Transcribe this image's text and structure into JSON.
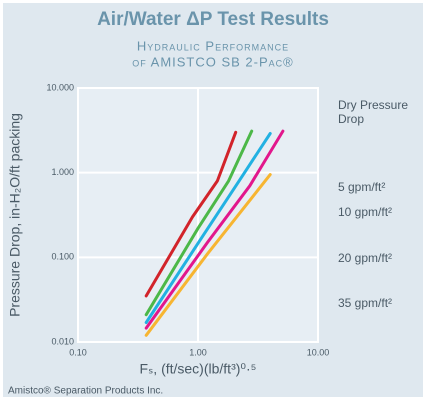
{
  "chart_data": {
    "type": "line",
    "title": "Air/Water ΔP Test Results",
    "subtitle": [
      "Hydraulic Performance",
      "of AMISTCO SB 2-Pac®"
    ],
    "x_label": "Fₛ, (ft/sec)(lb/ft³)⁰·⁵",
    "y_label": "Pressure Drop, in-H₂O/ft packing",
    "footer": "Amistco® Separation Products Inc.",
    "xlog": true,
    "ylog": true,
    "grid": true,
    "legend": "right",
    "xlim": [
      0.1,
      10
    ],
    "ylim": [
      0.01,
      10
    ],
    "xticks": [
      {
        "value": 0.1,
        "label": "0.10"
      },
      {
        "value": 1,
        "label": "1.00"
      },
      {
        "value": 10,
        "label": "10.00"
      }
    ],
    "yticks": [
      {
        "value": 0.01,
        "label": "0.010"
      },
      {
        "value": 0.1,
        "label": "0.100"
      },
      {
        "value": 1,
        "label": "1.000"
      },
      {
        "value": 10,
        "label": "10.000"
      }
    ],
    "series": [
      {
        "name": "Dry Pressure Drop",
        "color": "#f7b531",
        "x": [
          0.37,
          1.2,
          4.0
        ],
        "values": [
          0.012,
          0.11,
          0.95
        ]
      },
      {
        "name": "5 gpm/ft²",
        "color": "#e2178c",
        "x": [
          0.37,
          1.2,
          2.7,
          5.1
        ],
        "values": [
          0.0146,
          0.15,
          0.7,
          3.1
        ]
      },
      {
        "name": "10 gpm/ft²",
        "color": "#22b1e2",
        "x": [
          0.37,
          1.1,
          2.2,
          4.0
        ],
        "values": [
          0.017,
          0.18,
          0.8,
          2.9
        ]
      },
      {
        "name": "20 gpm/ft²",
        "color": "#4cb848",
        "x": [
          0.37,
          1.0,
          1.8,
          2.8
        ],
        "values": [
          0.021,
          0.22,
          0.8,
          3.1
        ]
      },
      {
        "name": "35 gpm/ft²",
        "color": "#d2232a",
        "x": [
          0.37,
          0.9,
          1.45,
          2.06
        ],
        "values": [
          0.035,
          0.3,
          0.8,
          3.0
        ]
      }
    ]
  }
}
